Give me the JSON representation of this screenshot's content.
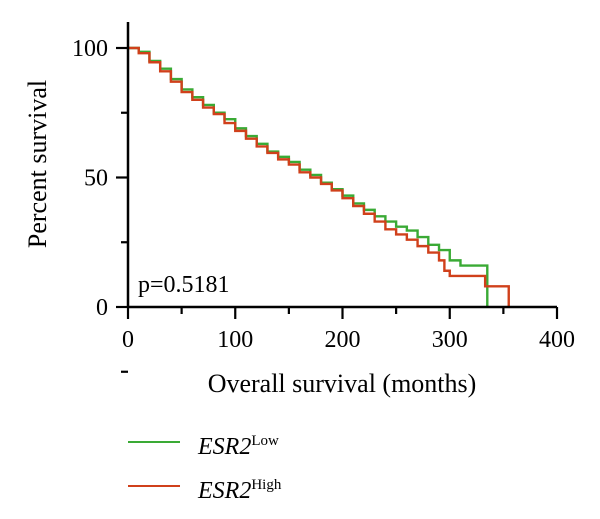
{
  "chart_data": {
    "type": "line",
    "xlabel": "Overall survival (months)",
    "ylabel": "Percent survival",
    "xlim": [
      0,
      400
    ],
    "ylim": [
      0,
      100
    ],
    "xticks": [
      0,
      100,
      200,
      300,
      400
    ],
    "yticks": [
      0,
      50,
      100
    ],
    "xtick_labels": [
      "0",
      "100",
      "200",
      "300",
      "400"
    ],
    "ytick_labels": [
      "0",
      "50",
      "100"
    ],
    "annotation": "p=0.5181",
    "grid": false,
    "legend_position": "bottom",
    "series": [
      {
        "name": "ESR2",
        "name_superscript": "Low",
        "color": "#3aaa35",
        "step": true,
        "points": [
          [
            0,
            100
          ],
          [
            10,
            98.5
          ],
          [
            20,
            95
          ],
          [
            30,
            92
          ],
          [
            40,
            88
          ],
          [
            50,
            84
          ],
          [
            60,
            81
          ],
          [
            70,
            78
          ],
          [
            80,
            75
          ],
          [
            90,
            72.5
          ],
          [
            100,
            69
          ],
          [
            110,
            66
          ],
          [
            120,
            63
          ],
          [
            130,
            60
          ],
          [
            140,
            58
          ],
          [
            150,
            56
          ],
          [
            160,
            53
          ],
          [
            170,
            51
          ],
          [
            180,
            48
          ],
          [
            190,
            45.5
          ],
          [
            200,
            43
          ],
          [
            210,
            40
          ],
          [
            220,
            37.5
          ],
          [
            230,
            35
          ],
          [
            240,
            33
          ],
          [
            250,
            31
          ],
          [
            260,
            29.5
          ],
          [
            270,
            27
          ],
          [
            280,
            24
          ],
          [
            290,
            22
          ],
          [
            300,
            18
          ],
          [
            310,
            16
          ],
          [
            320,
            16
          ],
          [
            335,
            16
          ],
          [
            335,
            0
          ]
        ]
      },
      {
        "name": "ESR2",
        "name_superscript": "High",
        "color": "#d0401b",
        "step": true,
        "points": [
          [
            0,
            100
          ],
          [
            10,
            98
          ],
          [
            20,
            94.5
          ],
          [
            30,
            91
          ],
          [
            40,
            87
          ],
          [
            50,
            83
          ],
          [
            60,
            80
          ],
          [
            70,
            77
          ],
          [
            80,
            74.5
          ],
          [
            90,
            71
          ],
          [
            100,
            68
          ],
          [
            110,
            65
          ],
          [
            120,
            62
          ],
          [
            130,
            59.5
          ],
          [
            140,
            57
          ],
          [
            150,
            55
          ],
          [
            160,
            52
          ],
          [
            170,
            50
          ],
          [
            180,
            47.5
          ],
          [
            190,
            45
          ],
          [
            200,
            42
          ],
          [
            210,
            39
          ],
          [
            220,
            36
          ],
          [
            230,
            33
          ],
          [
            240,
            30
          ],
          [
            250,
            28
          ],
          [
            260,
            26
          ],
          [
            270,
            23.5
          ],
          [
            280,
            21
          ],
          [
            290,
            18
          ],
          [
            295,
            14
          ],
          [
            300,
            12
          ],
          [
            310,
            12
          ],
          [
            320,
            12
          ],
          [
            333,
            12
          ],
          [
            333,
            8
          ],
          [
            355,
            8
          ],
          [
            355,
            0
          ]
        ]
      }
    ]
  },
  "legend": [
    {
      "gene": "ESR2",
      "sup": "Low",
      "color": "#3aaa35"
    },
    {
      "gene": "ESR2",
      "sup": "High",
      "color": "#d0401b"
    }
  ]
}
